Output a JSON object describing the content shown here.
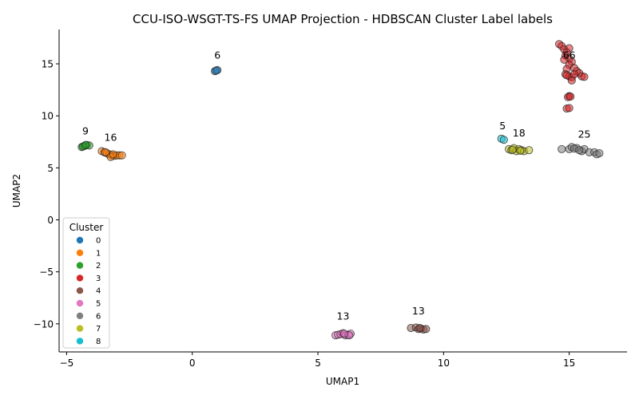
{
  "chart_data": {
    "type": "scatter",
    "title": "CCU-ISO-WSGT-TS-FS UMAP Projection - HDBSCAN Cluster Label labels",
    "xlabel": "UMAP1",
    "ylabel": "UMAP2",
    "xlim": [
      -5.3,
      17.3
    ],
    "ylim": [
      -12.7,
      18.3
    ],
    "xticks": [
      -5,
      0,
      5,
      10,
      15
    ],
    "yticks": [
      -10,
      -5,
      0,
      5,
      10,
      15
    ],
    "grid": false,
    "legend": {
      "title": "Cluster",
      "placement": "lower-left",
      "entries": [
        {
          "label": "0",
          "color": "#1f77b4"
        },
        {
          "label": "1",
          "color": "#ff7f0e"
        },
        {
          "label": "2",
          "color": "#2ca02c"
        },
        {
          "label": "3",
          "color": "#d62728"
        },
        {
          "label": "4",
          "color": "#8c564b"
        },
        {
          "label": "5",
          "color": "#e377c2"
        },
        {
          "label": "6",
          "color": "#7f7f7f"
        },
        {
          "label": "7",
          "color": "#bcbd22"
        },
        {
          "label": "8",
          "color": "#17becf"
        }
      ]
    },
    "series": [
      {
        "cluster": 0,
        "color": "#1f77b4",
        "points": [
          [
            0.9,
            14.3
          ],
          [
            1.0,
            14.4
          ],
          [
            0.95,
            14.35
          ]
        ]
      },
      {
        "cluster": 1,
        "color": "#ff7f0e",
        "points": [
          [
            -3.6,
            6.6
          ],
          [
            -3.5,
            6.5
          ],
          [
            -3.4,
            6.4
          ],
          [
            -3.3,
            6.3
          ],
          [
            -3.2,
            6.2
          ],
          [
            -3.1,
            6.15
          ],
          [
            -3.0,
            6.2
          ],
          [
            -2.9,
            6.2
          ],
          [
            -2.8,
            6.2
          ],
          [
            -3.25,
            6.05
          ],
          [
            -3.45,
            6.5
          ],
          [
            -3.15,
            6.3
          ]
        ]
      },
      {
        "cluster": 2,
        "color": "#2ca02c",
        "points": [
          [
            -4.4,
            7.0
          ],
          [
            -4.3,
            7.1
          ],
          [
            -4.2,
            7.2
          ],
          [
            -4.1,
            7.15
          ],
          [
            -4.35,
            7.05
          ],
          [
            -4.25,
            7.2
          ]
        ]
      },
      {
        "cluster": 3,
        "color": "#d62728",
        "points": [
          [
            14.6,
            16.9
          ],
          [
            14.7,
            16.7
          ],
          [
            14.8,
            16.4
          ],
          [
            15.0,
            16.5
          ],
          [
            14.9,
            16.1
          ],
          [
            14.85,
            15.8
          ],
          [
            15.0,
            15.5
          ],
          [
            14.8,
            15.4
          ],
          [
            15.1,
            15.2
          ],
          [
            15.0,
            14.9
          ],
          [
            15.2,
            14.6
          ],
          [
            14.9,
            14.5
          ],
          [
            15.3,
            14.3
          ],
          [
            15.4,
            14.1
          ],
          [
            14.85,
            14.0
          ],
          [
            15.0,
            13.8
          ],
          [
            15.1,
            13.7
          ],
          [
            15.5,
            13.8
          ],
          [
            15.6,
            13.75
          ],
          [
            15.1,
            13.4
          ],
          [
            14.9,
            13.9
          ],
          [
            15.2,
            14.0
          ],
          [
            15.0,
            11.9
          ],
          [
            14.95,
            11.8
          ],
          [
            15.05,
            11.85
          ],
          [
            14.9,
            10.7
          ],
          [
            15.0,
            10.75
          ]
        ]
      },
      {
        "cluster": 4,
        "color": "#8c564b",
        "points": [
          [
            8.7,
            -10.4
          ],
          [
            8.9,
            -10.35
          ],
          [
            9.0,
            -10.5
          ],
          [
            9.1,
            -10.45
          ],
          [
            9.2,
            -10.55
          ],
          [
            9.3,
            -10.5
          ],
          [
            9.05,
            -10.4
          ]
        ]
      },
      {
        "cluster": 5,
        "color": "#e377c2",
        "points": [
          [
            5.7,
            -11.1
          ],
          [
            5.8,
            -11.05
          ],
          [
            5.9,
            -11.0
          ],
          [
            6.0,
            -10.9
          ],
          [
            6.1,
            -11.1
          ],
          [
            6.2,
            -11.05
          ],
          [
            6.3,
            -10.95
          ],
          [
            6.25,
            -11.1
          ],
          [
            6.05,
            -10.95
          ]
        ]
      },
      {
        "cluster": 6,
        "color": "#7f7f7f",
        "points": [
          [
            14.7,
            6.8
          ],
          [
            15.0,
            6.8
          ],
          [
            15.1,
            7.0
          ],
          [
            15.3,
            6.9
          ],
          [
            15.5,
            6.6
          ],
          [
            15.6,
            6.8
          ],
          [
            15.8,
            6.5
          ],
          [
            16.0,
            6.5
          ],
          [
            16.1,
            6.3
          ],
          [
            16.2,
            6.4
          ],
          [
            15.2,
            6.85
          ],
          [
            15.4,
            6.7
          ]
        ]
      },
      {
        "cluster": 7,
        "color": "#bcbd22",
        "points": [
          [
            12.6,
            6.8
          ],
          [
            12.7,
            6.7
          ],
          [
            12.8,
            6.9
          ],
          [
            12.9,
            6.6
          ],
          [
            13.0,
            6.8
          ],
          [
            13.1,
            6.7
          ],
          [
            13.2,
            6.6
          ],
          [
            13.4,
            6.7
          ],
          [
            12.75,
            6.75
          ],
          [
            13.05,
            6.65
          ]
        ]
      },
      {
        "cluster": 8,
        "color": "#17becf",
        "points": [
          [
            12.3,
            7.8
          ],
          [
            12.4,
            7.7
          ]
        ]
      }
    ],
    "annotations": [
      {
        "text": "6",
        "x": 1.0,
        "y": 15.5
      },
      {
        "text": "9",
        "x": -4.25,
        "y": 8.2
      },
      {
        "text": "16",
        "x": -3.25,
        "y": 7.6
      },
      {
        "text": "5",
        "x": 12.35,
        "y": 8.7
      },
      {
        "text": "18",
        "x": 13.0,
        "y": 8.0
      },
      {
        "text": "66",
        "x": 15.0,
        "y": 15.5
      },
      {
        "text": "25",
        "x": 15.6,
        "y": 7.9
      },
      {
        "text": "13",
        "x": 6.0,
        "y": -9.6
      },
      {
        "text": "13",
        "x": 9.0,
        "y": -9.1
      }
    ]
  }
}
